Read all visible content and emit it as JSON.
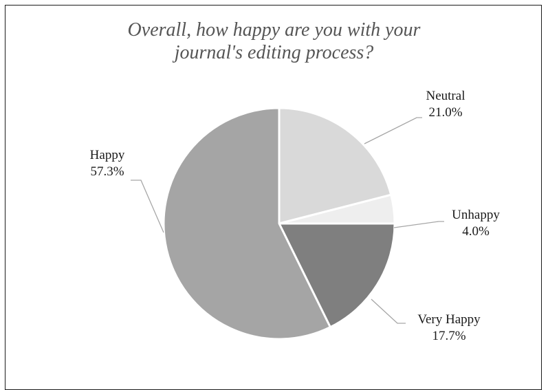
{
  "chart_data": {
    "type": "pie",
    "title": "Overall, how happy are you with your journal's editing process?",
    "title_lines": [
      "Overall, how happy are you with your",
      "journal's editing process?"
    ],
    "start": "12 o'clock",
    "direction": "clockwise",
    "slices": [
      {
        "label": "Neutral",
        "value": 21.0,
        "display": "21.0%",
        "color": "#d9d9d9"
      },
      {
        "label": "Unhappy",
        "value": 4.0,
        "display": "4.0%",
        "color": "#eeeeee"
      },
      {
        "label": "Very Happy",
        "value": 17.7,
        "display": "17.7%",
        "color": "#7f7f7f"
      },
      {
        "label": "Happy",
        "value": 57.3,
        "display": "57.3%",
        "color": "#a5a5a5"
      }
    ],
    "slice_border_color": "#ffffff",
    "leader_line_color": "#a6a6a6"
  }
}
